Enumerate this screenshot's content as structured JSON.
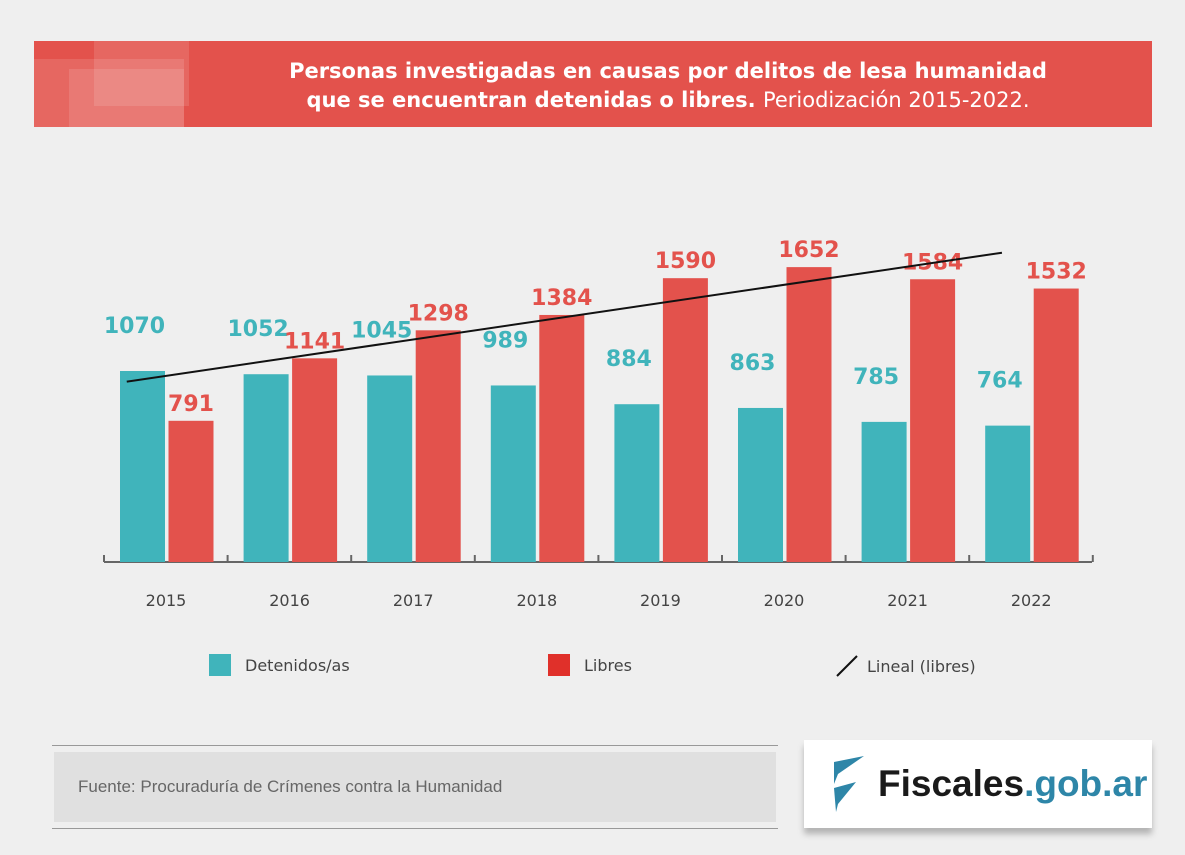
{
  "title": {
    "bold": "Personas investigadas en causas por delitos de lesa humanidad que se encuentran detenidas o libres.",
    "light": "Periodización 2015-2022.",
    "line1": "Personas investigadas en causas por delitos de lesa humanidad",
    "line2_bold": "que se encuentran detenidas o libres."
  },
  "chart_data": {
    "type": "bar",
    "categories": [
      "2015",
      "2016",
      "2017",
      "2018",
      "2019",
      "2020",
      "2021",
      "2022"
    ],
    "series": [
      {
        "name": "Detenidos/as",
        "color": "#40b4bb",
        "values": [
          1070,
          1052,
          1045,
          989,
          884,
          863,
          785,
          764
        ]
      },
      {
        "name": "Libres",
        "color": "#e3524c",
        "values": [
          791,
          1141,
          1298,
          1384,
          1590,
          1652,
          1584,
          1532
        ]
      }
    ],
    "trendline": {
      "name": "Lineal (libres)",
      "type": "linear",
      "of": "Libres",
      "color": "#111111"
    },
    "legend": "bottom",
    "grid": false,
    "ylim": [
      0,
      1800
    ]
  },
  "legend": {
    "detenidos": "Detenidos/as",
    "libres": "Libres",
    "lineal": "Lineal (libres)",
    "libres_color": "#e0302a"
  },
  "source": "Fuente: Procuraduría de Crímenes contra la Humanidad",
  "logo": {
    "dark": "Fiscales",
    "blue": ".gob.ar",
    "color": "#2e86a8"
  }
}
